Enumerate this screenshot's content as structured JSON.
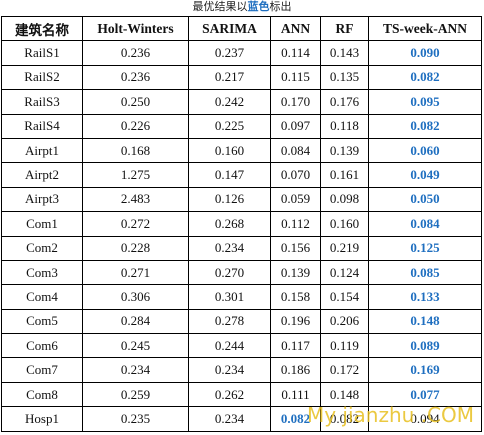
{
  "caption": {
    "before": "最优结果以",
    "highlight": "蓝色",
    "after": "标出"
  },
  "table": {
    "header": [
      "建筑名称",
      "Holt-Winters",
      "SARIMA",
      "ANN",
      "RF",
      "TS-week-ANN"
    ],
    "rows": [
      [
        "RailS1",
        "0.236",
        "0.237",
        "0.114",
        "0.143",
        "0.090"
      ],
      [
        "RailS2",
        "0.236",
        "0.217",
        "0.115",
        "0.135",
        "0.082"
      ],
      [
        "RailS3",
        "0.250",
        "0.242",
        "0.170",
        "0.176",
        "0.095"
      ],
      [
        "RailS4",
        "0.226",
        "0.225",
        "0.097",
        "0.118",
        "0.082"
      ],
      [
        "Airpt1",
        "0.168",
        "0.160",
        "0.084",
        "0.139",
        "0.060"
      ],
      [
        "Airpt2",
        "1.275",
        "0.147",
        "0.070",
        "0.161",
        "0.049"
      ],
      [
        "Airpt3",
        "2.483",
        "0.126",
        "0.059",
        "0.098",
        "0.050"
      ],
      [
        "Com1",
        "0.272",
        "0.268",
        "0.112",
        "0.160",
        "0.084"
      ],
      [
        "Com2",
        "0.228",
        "0.234",
        "0.156",
        "0.219",
        "0.125"
      ],
      [
        "Com3",
        "0.271",
        "0.270",
        "0.139",
        "0.124",
        "0.085"
      ],
      [
        "Com4",
        "0.306",
        "0.301",
        "0.158",
        "0.154",
        "0.133"
      ],
      [
        "Com5",
        "0.284",
        "0.278",
        "0.196",
        "0.206",
        "0.148"
      ],
      [
        "Com6",
        "0.245",
        "0.244",
        "0.117",
        "0.119",
        "0.089"
      ],
      [
        "Com7",
        "0.234",
        "0.234",
        "0.186",
        "0.172",
        "0.169"
      ],
      [
        "Com8",
        "0.259",
        "0.262",
        "0.111",
        "0.148",
        "0.077"
      ],
      [
        "Hosp1",
        "0.235",
        "0.234",
        "0.082",
        "0.082",
        "0.094"
      ]
    ],
    "best": [
      5,
      5,
      5,
      5,
      5,
      5,
      5,
      5,
      5,
      5,
      5,
      5,
      5,
      5,
      5,
      3
    ],
    "highlight_color": "#1f6fc0"
  },
  "watermark": "My jianzhu .COM"
}
